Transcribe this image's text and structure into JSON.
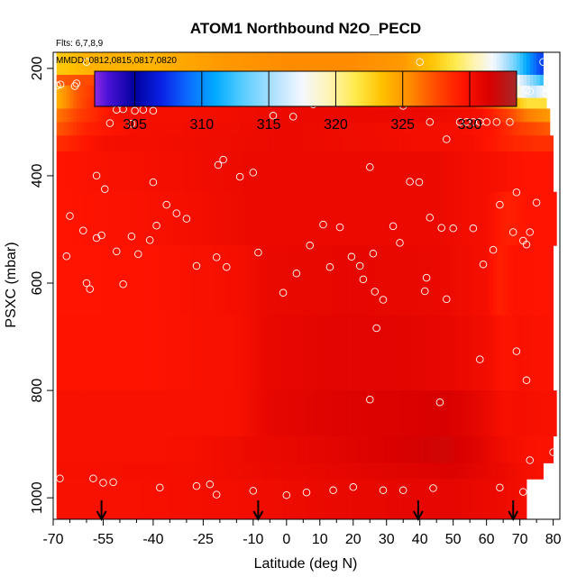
{
  "chart_data": {
    "type": "heatmap",
    "title": "ATOM1 Northbound N2O_PECD",
    "subtitle_flights": "Flts: 6,7,8,9",
    "subtitle_dates": "MMDD: 0812,0815,0817,0820",
    "xlabel": "Latitude (deg N)",
    "ylabel": "PSXC (mbar)",
    "xlim": [
      -70,
      82
    ],
    "ylim": [
      1040,
      170
    ],
    "x_ticks": [
      "-70",
      "-55",
      "-40",
      "-25",
      "-10",
      "0",
      "10",
      "20",
      "30",
      "40",
      "50",
      "60",
      "70",
      "80"
    ],
    "x_tick_values": [
      -70,
      -55,
      -40,
      -25,
      -10,
      0,
      10,
      20,
      30,
      40,
      50,
      60,
      70,
      80
    ],
    "x_minor_ticks": [
      -65,
      -60,
      -50,
      -45,
      -35,
      -30,
      -20,
      -15,
      -5,
      5,
      15,
      25,
      35,
      45,
      55,
      65,
      75
    ],
    "y_ticks": [
      "200",
      "400",
      "600",
      "800",
      "1000"
    ],
    "y_tick_values": [
      200,
      400,
      600,
      800,
      1000
    ],
    "colorbar": {
      "label_values": [
        "305",
        "310",
        "315",
        "320",
        "325",
        "330"
      ],
      "range": [
        302,
        333.5
      ],
      "stops": [
        {
          "v": 302,
          "c": "#8b2be2"
        },
        {
          "v": 303,
          "c": "#4b12d6"
        },
        {
          "v": 305,
          "c": "#00009e"
        },
        {
          "v": 307,
          "c": "#0a22e6"
        },
        {
          "v": 309,
          "c": "#0a6cff"
        },
        {
          "v": 311,
          "c": "#00aaff"
        },
        {
          "v": 313,
          "c": "#55ccff"
        },
        {
          "v": 315.5,
          "c": "#b5e2ff"
        },
        {
          "v": 317.5,
          "c": "#f4f8ff"
        },
        {
          "v": 319.5,
          "c": "#fff4b5"
        },
        {
          "v": 321.5,
          "c": "#ffea4a"
        },
        {
          "v": 323.5,
          "c": "#ffc000"
        },
        {
          "v": 325.5,
          "c": "#ff8c00"
        },
        {
          "v": 327.5,
          "c": "#ff4a00"
        },
        {
          "v": 329.5,
          "c": "#ff1400"
        },
        {
          "v": 331.5,
          "c": "#d80000"
        },
        {
          "v": 333.5,
          "c": "#a82828"
        }
      ]
    },
    "field": [
      {
        "pmin": 170,
        "pmax": 212,
        "xmin": -69,
        "xmax": 77,
        "vals": [
          [
            -69,
            323
          ],
          [
            -60,
            324
          ],
          [
            -40,
            324
          ],
          [
            -20,
            325
          ],
          [
            0,
            325.5
          ],
          [
            20,
            325.5
          ],
          [
            35,
            325
          ],
          [
            45,
            323
          ],
          [
            52,
            321
          ],
          [
            58,
            319
          ],
          [
            63,
            317
          ],
          [
            68,
            314
          ],
          [
            72,
            311
          ],
          [
            76,
            308
          ]
        ]
      },
      {
        "pmin": 212,
        "pmax": 232,
        "xmin": -69,
        "xmax": 77,
        "vals": [
          [
            -69,
            327
          ],
          [
            -50,
            328
          ],
          [
            -30,
            329
          ],
          [
            0,
            330
          ],
          [
            30,
            330
          ],
          [
            42,
            329
          ],
          [
            50,
            327
          ],
          [
            58,
            324
          ],
          [
            64,
            321
          ],
          [
            70,
            317
          ],
          [
            74,
            314
          ],
          [
            77,
            312
          ]
        ]
      },
      {
        "pmin": 232,
        "pmax": 255,
        "xmin": -69,
        "xmax": 78,
        "vals": [
          [
            -69,
            324
          ],
          [
            -63,
            327
          ],
          [
            -55,
            329
          ],
          [
            -40,
            330
          ],
          [
            0,
            330
          ],
          [
            40,
            330
          ],
          [
            52,
            329
          ],
          [
            60,
            327
          ],
          [
            66,
            323
          ],
          [
            70,
            318
          ],
          [
            74,
            316
          ],
          [
            78,
            318
          ]
        ]
      },
      {
        "pmin": 255,
        "pmax": 275,
        "xmin": -69,
        "xmax": 78,
        "vals": [
          [
            -69,
            324
          ],
          [
            -63,
            327
          ],
          [
            -55,
            329.5
          ],
          [
            -40,
            330
          ],
          [
            0,
            330.5
          ],
          [
            40,
            330
          ],
          [
            55,
            329.5
          ],
          [
            62,
            327
          ],
          [
            68,
            324
          ],
          [
            72,
            322
          ],
          [
            78,
            322
          ]
        ]
      },
      {
        "pmin": 275,
        "pmax": 300,
        "xmin": -69,
        "xmax": 79,
        "vals": [
          [
            -69,
            326
          ],
          [
            -62,
            328
          ],
          [
            -50,
            330
          ],
          [
            -30,
            330
          ],
          [
            0,
            330.5
          ],
          [
            40,
            330.5
          ],
          [
            58,
            330
          ],
          [
            66,
            328
          ],
          [
            72,
            326
          ],
          [
            79,
            325
          ]
        ]
      },
      {
        "pmin": 300,
        "pmax": 325,
        "xmin": -69,
        "xmax": 79,
        "vals": [
          [
            -69,
            327
          ],
          [
            -60,
            329
          ],
          [
            -45,
            330
          ],
          [
            0,
            330.5
          ],
          [
            50,
            330
          ],
          [
            62,
            329.5
          ],
          [
            70,
            328
          ],
          [
            79,
            327
          ]
        ]
      },
      {
        "pmin": 325,
        "pmax": 355,
        "xmin": -69,
        "xmax": 80,
        "vals": [
          [
            -69,
            328.5
          ],
          [
            -55,
            330
          ],
          [
            0,
            330.5
          ],
          [
            55,
            330
          ],
          [
            66,
            329
          ],
          [
            74,
            328.5
          ],
          [
            80,
            328.5
          ]
        ]
      },
      {
        "pmin": 355,
        "pmax": 430,
        "xmin": -69,
        "xmax": 80,
        "vals": [
          [
            -69,
            329.5
          ],
          [
            -40,
            330
          ],
          [
            -10,
            330.5
          ],
          [
            20,
            330.5
          ],
          [
            45,
            330.5
          ],
          [
            60,
            330
          ],
          [
            72,
            329.5
          ],
          [
            80,
            329.5
          ]
        ]
      },
      {
        "pmin": 430,
        "pmax": 530,
        "xmin": -69,
        "xmax": 81,
        "vals": [
          [
            -69,
            329.5
          ],
          [
            -40,
            329.8
          ],
          [
            -10,
            330.5
          ],
          [
            20,
            330.5
          ],
          [
            45,
            330.5
          ],
          [
            60,
            330
          ],
          [
            66,
            329
          ],
          [
            72,
            329.5
          ],
          [
            81,
            329.5
          ]
        ]
      },
      {
        "pmin": 530,
        "pmax": 660,
        "xmin": -69,
        "xmax": 80,
        "vals": [
          [
            -69,
            329.5
          ],
          [
            -40,
            329.6
          ],
          [
            -15,
            330
          ],
          [
            -5,
            330.6
          ],
          [
            20,
            330.8
          ],
          [
            45,
            330.6
          ],
          [
            60,
            330
          ],
          [
            64,
            329
          ],
          [
            68,
            329.6
          ],
          [
            80,
            329.5
          ]
        ]
      },
      {
        "pmin": 660,
        "pmax": 800,
        "xmin": -69,
        "xmax": 80,
        "vals": [
          [
            -69,
            329.6
          ],
          [
            -40,
            329.6
          ],
          [
            -15,
            329.9
          ],
          [
            -5,
            330.7
          ],
          [
            15,
            331
          ],
          [
            30,
            331
          ],
          [
            45,
            330.8
          ],
          [
            60,
            330.2
          ],
          [
            65,
            329.5
          ],
          [
            70,
            329.8
          ],
          [
            80,
            329.6
          ]
        ]
      },
      {
        "pmin": 800,
        "pmax": 885,
        "xmin": -69,
        "xmax": 81,
        "vals": [
          [
            -69,
            329.8
          ],
          [
            -40,
            329.8
          ],
          [
            -15,
            329.9
          ],
          [
            -5,
            330.8
          ],
          [
            15,
            331.2
          ],
          [
            30,
            331.3
          ],
          [
            48,
            331.5
          ],
          [
            58,
            330.8
          ],
          [
            65,
            329.9
          ],
          [
            70,
            330
          ],
          [
            81,
            329.8
          ]
        ]
      },
      {
        "pmin": 885,
        "pmax": 935,
        "xmin": -69,
        "xmax": 80,
        "vals": [
          [
            -69,
            329.8
          ],
          [
            -30,
            329.9
          ],
          [
            -10,
            330.5
          ],
          [
            15,
            331
          ],
          [
            35,
            331.5
          ],
          [
            48,
            331.8
          ],
          [
            58,
            331
          ],
          [
            65,
            330.2
          ],
          [
            72,
            329.8
          ],
          [
            80,
            329.6
          ]
        ]
      },
      {
        "pmin": 935,
        "pmax": 965,
        "xmin": -69,
        "xmax": 77,
        "vals": [
          [
            -69,
            329.9
          ],
          [
            -30,
            330
          ],
          [
            -10,
            330.4
          ],
          [
            15,
            330.8
          ],
          [
            35,
            331.1
          ],
          [
            50,
            331.3
          ],
          [
            65,
            330.5
          ],
          [
            72,
            330
          ],
          [
            77,
            329.8
          ]
        ]
      },
      {
        "pmin": 965,
        "pmax": 1040,
        "xmin": -69,
        "xmax": 72,
        "vals": [
          [
            -69,
            329.8
          ],
          [
            -40,
            329.9
          ],
          [
            -10,
            330.2
          ],
          [
            15,
            330.6
          ],
          [
            35,
            330.8
          ],
          [
            50,
            330.8
          ],
          [
            65,
            330.4
          ],
          [
            72,
            330
          ]
        ]
      }
    ],
    "obs_points": [
      [
        -68.8,
        232
      ],
      [
        -67.8,
        230
      ],
      [
        -63.5,
        233
      ],
      [
        -63,
        228
      ],
      [
        -60,
        188
      ],
      [
        -53,
        302
      ],
      [
        -51,
        277
      ],
      [
        -49,
        276
      ],
      [
        -46.5,
        303
      ],
      [
        -45.5,
        279
      ],
      [
        -43,
        277
      ],
      [
        -40,
        279
      ],
      [
        -34,
        250
      ],
      [
        -32,
        258
      ],
      [
        -27,
        242
      ],
      [
        -20,
        242
      ],
      [
        -16,
        242
      ],
      [
        -10,
        213
      ],
      [
        -4,
        288
      ],
      [
        2,
        290
      ],
      [
        8,
        267
      ],
      [
        13,
        255
      ],
      [
        20,
        261
      ],
      [
        27,
        247
      ],
      [
        32,
        225
      ],
      [
        35,
        270
      ],
      [
        40,
        188
      ],
      [
        43,
        300
      ],
      [
        48,
        332
      ],
      [
        52,
        300
      ],
      [
        54,
        300
      ],
      [
        56,
        300
      ],
      [
        58,
        300
      ],
      [
        60,
        300
      ],
      [
        63,
        300
      ],
      [
        67,
        300
      ],
      [
        68,
        249
      ],
      [
        72,
        240
      ],
      [
        73,
        243
      ],
      [
        77,
        188
      ],
      [
        78,
        237
      ],
      [
        78,
        247
      ],
      [
        -57,
        400
      ],
      [
        -54.5,
        425
      ],
      [
        -40,
        412
      ],
      [
        -20.5,
        380
      ],
      [
        -19,
        370
      ],
      [
        -14,
        402
      ],
      [
        -10,
        394
      ],
      [
        25,
        384
      ],
      [
        37,
        411
      ],
      [
        39.8,
        412
      ],
      [
        -65,
        475
      ],
      [
        -66,
        550
      ],
      [
        -61,
        502
      ],
      [
        -57,
        516
      ],
      [
        -55.5,
        511
      ],
      [
        -51,
        541
      ],
      [
        -49,
        602
      ],
      [
        -46.5,
        513
      ],
      [
        -41,
        520
      ],
      [
        -39,
        493
      ],
      [
        -36,
        454
      ],
      [
        -33,
        470
      ],
      [
        -30,
        480
      ],
      [
        -27,
        568
      ],
      [
        -21,
        552
      ],
      [
        -18,
        570
      ],
      [
        -8.5,
        543
      ],
      [
        -1,
        618
      ],
      [
        3,
        582
      ],
      [
        7,
        530
      ],
      [
        11,
        491
      ],
      [
        13,
        570
      ],
      [
        16,
        496
      ],
      [
        19.5,
        551
      ],
      [
        22,
        568
      ],
      [
        23,
        593
      ],
      [
        26,
        545
      ],
      [
        26.5,
        616
      ],
      [
        29,
        631
      ],
      [
        32,
        494
      ],
      [
        42,
        590
      ],
      [
        48,
        630
      ],
      [
        50,
        498
      ],
      [
        56,
        498
      ],
      [
        62,
        538
      ],
      [
        64,
        454
      ],
      [
        68,
        505
      ],
      [
        69,
        431
      ],
      [
        71,
        521
      ],
      [
        72,
        528
      ],
      [
        73,
        505
      ],
      [
        75,
        450
      ],
      [
        59,
        565
      ],
      [
        41.5,
        615
      ],
      [
        34,
        525
      ],
      [
        43,
        478
      ],
      [
        46.5,
        497
      ],
      [
        -44.5,
        546
      ],
      [
        -59,
        611
      ],
      [
        -60,
        600
      ],
      [
        27,
        684
      ],
      [
        58,
        742
      ],
      [
        69,
        727
      ],
      [
        72,
        781
      ],
      [
        25,
        817
      ],
      [
        46,
        822
      ],
      [
        73,
        930
      ],
      [
        80,
        915
      ],
      [
        -68,
        964
      ],
      [
        -58,
        964
      ],
      [
        -55,
        972
      ],
      [
        -52,
        971
      ],
      [
        -38,
        981
      ],
      [
        -27,
        978
      ],
      [
        -23,
        975
      ],
      [
        -21,
        994
      ],
      [
        -10,
        987
      ],
      [
        0,
        995
      ],
      [
        6,
        990
      ],
      [
        14,
        986
      ],
      [
        20,
        980
      ],
      [
        29,
        986
      ],
      [
        35,
        986
      ],
      [
        44,
        982
      ],
      [
        64,
        981
      ],
      [
        71,
        989
      ]
    ],
    "flight_markers_lat": [
      -55.5,
      -8.5,
      39.5,
      68
    ]
  }
}
